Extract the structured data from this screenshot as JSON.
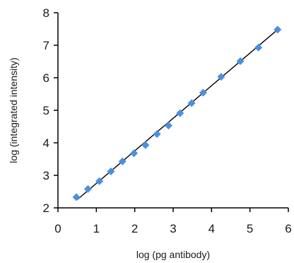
{
  "chart_data": {
    "type": "scatter",
    "title": "",
    "xlabel": "log (pg antibody)",
    "ylabel": "log (integrated intensity)",
    "xlim": [
      0,
      6
    ],
    "ylim": [
      2,
      8
    ],
    "xticks": [
      "0",
      "1",
      "2",
      "3",
      "4",
      "5",
      "6"
    ],
    "yticks": [
      "2",
      "3",
      "4",
      "5",
      "6",
      "7",
      "8"
    ],
    "grid": false,
    "legend": "none",
    "marker": "diamond",
    "series": [
      {
        "x": [
          0.48,
          0.78,
          1.08,
          1.38,
          1.68,
          1.98,
          2.28,
          2.58,
          2.88,
          3.18,
          3.48,
          3.78,
          4.25,
          4.75,
          5.22,
          5.72
        ],
        "y": [
          2.33,
          2.58,
          2.82,
          3.12,
          3.43,
          3.68,
          3.93,
          4.27,
          4.53,
          4.91,
          5.22,
          5.54,
          6.03,
          6.51,
          6.93,
          7.48
        ]
      }
    ],
    "trendline": {
      "type": "linear",
      "x": [
        0.5,
        5.72
      ],
      "y": [
        2.25,
        7.48
      ]
    },
    "colors": {
      "marker": "#4a90e2",
      "trendline": "#000000",
      "axis": "#000000",
      "text": "#1a1a1a"
    }
  }
}
